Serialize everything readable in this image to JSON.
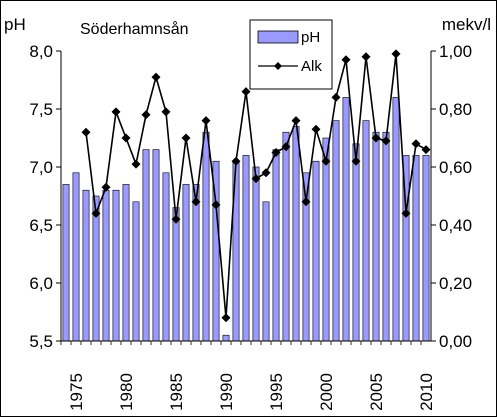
{
  "chart_data": {
    "type": "bar+line",
    "title": "Söderhamnsån",
    "y_left": {
      "label": "pH",
      "range": [
        5.5,
        8.0
      ],
      "ticks": [
        "5,5",
        "6,0",
        "6,5",
        "7,0",
        "7,5",
        "8,0"
      ]
    },
    "y_right": {
      "label": "mekv/l",
      "range": [
        0.0,
        1.0
      ],
      "ticks": [
        "0,00",
        "0,20",
        "0,40",
        "0,60",
        "0,80",
        "1,00"
      ]
    },
    "x_ticks": [
      "1975",
      "1980",
      "1985",
      "1990",
      "1995",
      "2000",
      "2005",
      "2010"
    ],
    "years": [
      1974,
      1975,
      1976,
      1977,
      1978,
      1979,
      1980,
      1981,
      1982,
      1983,
      1984,
      1985,
      1986,
      1987,
      1988,
      1989,
      1990,
      1991,
      1992,
      1993,
      1994,
      1995,
      1996,
      1997,
      1998,
      1999,
      2000,
      2001,
      2002,
      2003,
      2004,
      2005,
      2006,
      2007,
      2008,
      2009,
      2010
    ],
    "series": [
      {
        "name": "pH",
        "type": "bar",
        "color": "#9999ff",
        "values": [
          6.85,
          6.95,
          6.8,
          6.75,
          6.8,
          6.8,
          6.85,
          6.7,
          7.15,
          7.15,
          6.95,
          6.65,
          6.85,
          6.85,
          7.3,
          7.05,
          5.55,
          7.05,
          7.1,
          7.0,
          6.7,
          7.15,
          7.3,
          7.35,
          6.95,
          7.05,
          7.25,
          7.4,
          7.6,
          7.2,
          7.4,
          7.3,
          7.3,
          7.6,
          7.1,
          7.1,
          7.1
        ]
      },
      {
        "name": "Alk",
        "type": "line",
        "color": "#000000",
        "values": [
          null,
          null,
          0.72,
          0.44,
          0.53,
          0.79,
          0.7,
          0.61,
          0.78,
          0.91,
          0.79,
          0.42,
          0.7,
          0.48,
          0.76,
          0.47,
          0.08,
          0.62,
          0.86,
          0.56,
          0.58,
          0.65,
          0.67,
          0.76,
          0.48,
          0.73,
          0.62,
          0.84,
          0.97,
          0.62,
          0.98,
          0.7,
          0.69,
          0.99,
          0.44,
          0.68,
          0.66
        ]
      }
    ],
    "legend": {
      "placement": "top-center",
      "entries": [
        "pH",
        "Alk"
      ]
    }
  }
}
